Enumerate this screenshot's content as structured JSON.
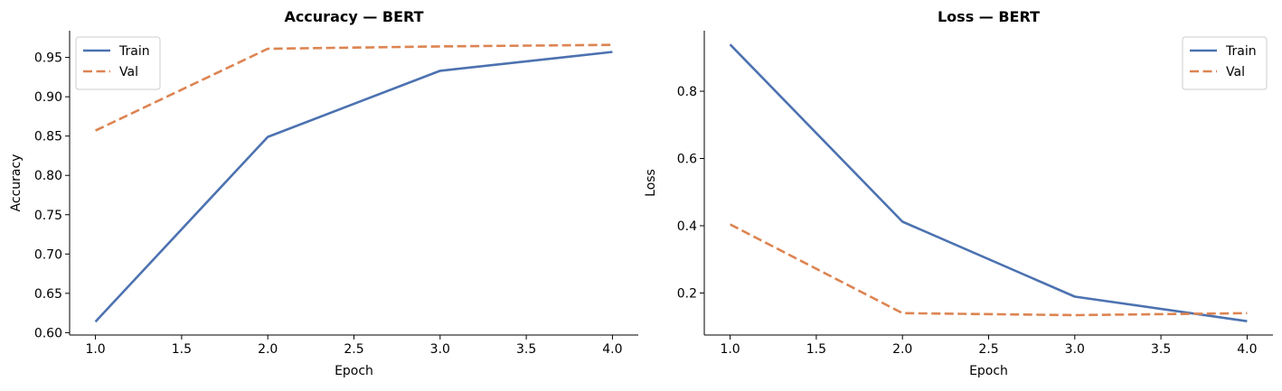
{
  "colors": {
    "train": "#4c72b0",
    "val": "#dd8452"
  },
  "chart_data": [
    {
      "type": "line",
      "title": "Accuracy — BERT",
      "xlabel": "Epoch",
      "ylabel": "Accuracy",
      "xlim": [
        0.85,
        4.15
      ],
      "ylim": [
        0.597,
        0.984
      ],
      "xticks": [
        1.0,
        1.5,
        2.0,
        2.5,
        3.0,
        3.5,
        4.0
      ],
      "xtick_labels": [
        "1.0",
        "1.5",
        "2.0",
        "2.5",
        "3.0",
        "3.5",
        "4.0"
      ],
      "yticks": [
        0.6,
        0.65,
        0.7,
        0.75,
        0.8,
        0.85,
        0.9,
        0.95
      ],
      "ytick_labels": [
        "0.60",
        "0.65",
        "0.70",
        "0.75",
        "0.80",
        "0.85",
        "0.90",
        "0.95"
      ],
      "grid": false,
      "legend_position": "top-left",
      "series": [
        {
          "name": "Train",
          "style": "solid",
          "x": [
            1,
            2,
            3,
            4
          ],
          "y": [
            0.614,
            0.849,
            0.933,
            0.957
          ]
        },
        {
          "name": "Val",
          "style": "dashed",
          "x": [
            1,
            2,
            3,
            4
          ],
          "y": [
            0.857,
            0.961,
            0.964,
            0.966
          ]
        }
      ]
    },
    {
      "type": "line",
      "title": "Loss — BERT",
      "xlabel": "Epoch",
      "ylabel": "Loss",
      "xlim": [
        0.85,
        4.15
      ],
      "ylim": [
        0.075,
        0.98
      ],
      "xticks": [
        1.0,
        1.5,
        2.0,
        2.5,
        3.0,
        3.5,
        4.0
      ],
      "xtick_labels": [
        "1.0",
        "1.5",
        "2.0",
        "2.5",
        "3.0",
        "3.5",
        "4.0"
      ],
      "yticks": [
        0.2,
        0.4,
        0.6,
        0.8
      ],
      "ytick_labels": [
        "0.2",
        "0.4",
        "0.6",
        "0.8"
      ],
      "grid": false,
      "legend_position": "top-right",
      "series": [
        {
          "name": "Train",
          "style": "solid",
          "x": [
            1,
            2,
            3,
            4
          ],
          "y": [
            0.939,
            0.412,
            0.189,
            0.116
          ]
        },
        {
          "name": "Val",
          "style": "dashed",
          "x": [
            1,
            2,
            3,
            4
          ],
          "y": [
            0.404,
            0.14,
            0.134,
            0.14
          ]
        }
      ]
    }
  ]
}
